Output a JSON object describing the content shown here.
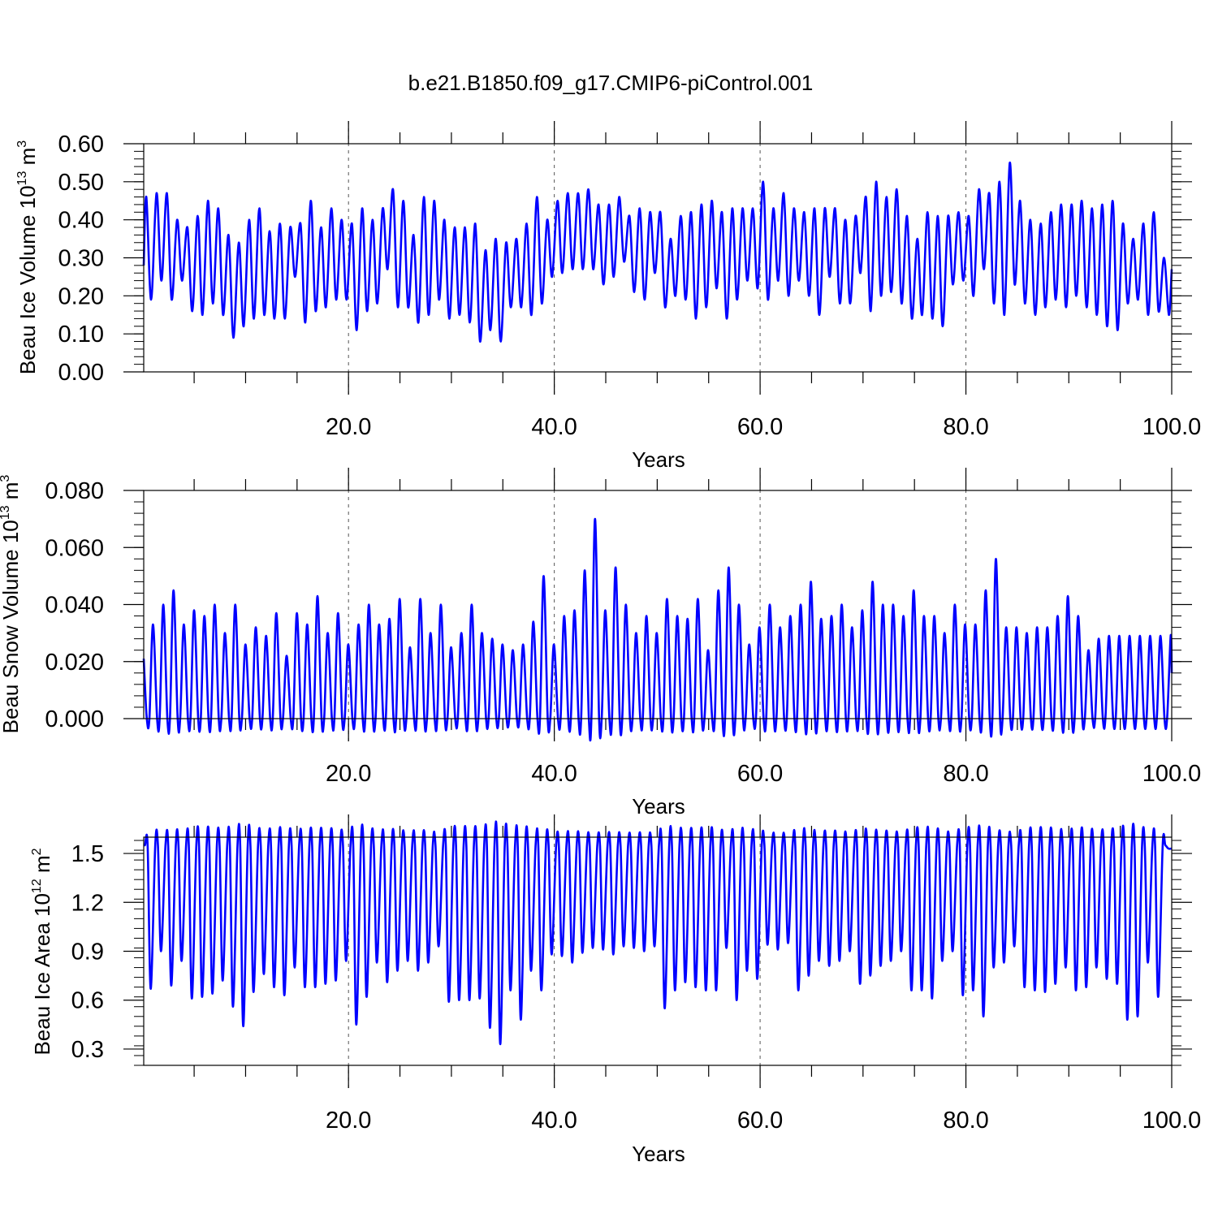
{
  "title": "b.e21.B1850.f09_g17.CMIP6-piControl.001",
  "colors": {
    "line": "#0000ff",
    "axes": "#000000",
    "grid": "#555555",
    "background": "#ffffff"
  },
  "chart_data": [
    {
      "type": "line",
      "ylabel_prefix": "Beau Ice Volume 10",
      "ylabel_exponent": "13",
      "ylabel_unit": " m",
      "ylabel_unit_exponent": "3",
      "xlabel": "Years",
      "xlim": [
        0.1,
        100.0
      ],
      "ylim": [
        0.0,
        0.6
      ],
      "x_ticks": [
        "20.0",
        "40.0",
        "60.0",
        "80.0",
        "100.0"
      ],
      "y_ticks": [
        "0.00",
        "0.10",
        "0.20",
        "0.30",
        "0.40",
        "0.50",
        "0.60"
      ],
      "vertical_gridlines_at": [
        20,
        40,
        60,
        80
      ],
      "series": [
        {
          "peaks": [
            0.46,
            0.47,
            0.47,
            0.4,
            0.38,
            0.41,
            0.45,
            0.43,
            0.36,
            0.34,
            0.4,
            0.43,
            0.37,
            0.39,
            0.38,
            0.39,
            0.45,
            0.38,
            0.43,
            0.4,
            0.39,
            0.43,
            0.4,
            0.43,
            0.48,
            0.45,
            0.36,
            0.46,
            0.45,
            0.4,
            0.38,
            0.38,
            0.39,
            0.32,
            0.35,
            0.34,
            0.35,
            0.39,
            0.46,
            0.4,
            0.45,
            0.47,
            0.47,
            0.48,
            0.44,
            0.44,
            0.46,
            0.41,
            0.43,
            0.42,
            0.42,
            0.35,
            0.41,
            0.42,
            0.44,
            0.45,
            0.42,
            0.43,
            0.43,
            0.43,
            0.5,
            0.43,
            0.47,
            0.43,
            0.42,
            0.43,
            0.43,
            0.43,
            0.4,
            0.41,
            0.46,
            0.5,
            0.46,
            0.48,
            0.41,
            0.35,
            0.42,
            0.41,
            0.41,
            0.42,
            0.41,
            0.48,
            0.47,
            0.5,
            0.55,
            0.45,
            0.4,
            0.39,
            0.42,
            0.44,
            0.44,
            0.45,
            0.43,
            0.44,
            0.45,
            0.39,
            0.35,
            0.39,
            0.42,
            0.3
          ],
          "troughs": [
            0.19,
            0.24,
            0.19,
            0.24,
            0.16,
            0.15,
            0.18,
            0.15,
            0.09,
            0.12,
            0.14,
            0.15,
            0.14,
            0.14,
            0.25,
            0.13,
            0.16,
            0.17,
            0.19,
            0.19,
            0.11,
            0.16,
            0.18,
            0.27,
            0.17,
            0.17,
            0.13,
            0.15,
            0.19,
            0.14,
            0.15,
            0.13,
            0.08,
            0.11,
            0.08,
            0.17,
            0.17,
            0.15,
            0.18,
            0.25,
            0.26,
            0.27,
            0.27,
            0.27,
            0.23,
            0.25,
            0.29,
            0.21,
            0.19,
            0.26,
            0.17,
            0.2,
            0.19,
            0.14,
            0.17,
            0.22,
            0.14,
            0.19,
            0.24,
            0.22,
            0.19,
            0.24,
            0.2,
            0.24,
            0.2,
            0.15,
            0.25,
            0.18,
            0.18,
            0.26,
            0.16,
            0.2,
            0.21,
            0.18,
            0.14,
            0.15,
            0.14,
            0.12,
            0.23,
            0.24,
            0.2,
            0.27,
            0.18,
            0.15,
            0.23,
            0.18,
            0.15,
            0.17,
            0.19,
            0.17,
            0.2,
            0.17,
            0.15,
            0.12,
            0.11,
            0.18,
            0.19,
            0.15,
            0.16,
            0.15
          ],
          "start_value": 0.28,
          "end_value": 0.27
        }
      ]
    },
    {
      "type": "line",
      "ylabel_prefix": "Beau Snow Volume 10",
      "ylabel_exponent": "13",
      "ylabel_unit": " m",
      "ylabel_unit_exponent": "3",
      "xlabel": "Years",
      "xlim": [
        0.1,
        100.0
      ],
      "ylim": [
        0.0,
        0.08
      ],
      "x_ticks": [
        "20.0",
        "40.0",
        "60.0",
        "80.0",
        "100.0"
      ],
      "y_ticks": [
        "0.000",
        "0.020",
        "0.040",
        "0.060",
        "0.080"
      ],
      "vertical_gridlines_at": [
        20,
        40,
        60,
        80
      ],
      "series": [
        {
          "peaks": [
            0.033,
            0.04,
            0.045,
            0.033,
            0.038,
            0.036,
            0.04,
            0.03,
            0.04,
            0.026,
            0.032,
            0.029,
            0.037,
            0.022,
            0.037,
            0.033,
            0.043,
            0.03,
            0.037,
            0.026,
            0.033,
            0.04,
            0.033,
            0.035,
            0.042,
            0.025,
            0.042,
            0.03,
            0.04,
            0.025,
            0.03,
            0.04,
            0.03,
            0.028,
            0.026,
            0.024,
            0.026,
            0.034,
            0.05,
            0.026,
            0.036,
            0.038,
            0.052,
            0.07,
            0.038,
            0.053,
            0.04,
            0.03,
            0.036,
            0.03,
            0.042,
            0.036,
            0.035,
            0.042,
            0.024,
            0.045,
            0.053,
            0.04,
            0.026,
            0.032,
            0.04,
            0.032,
            0.036,
            0.04,
            0.048,
            0.035,
            0.036,
            0.04,
            0.032,
            0.038,
            0.048,
            0.04,
            0.04,
            0.036,
            0.045,
            0.036,
            0.036,
            0.03,
            0.04,
            0.033,
            0.033,
            0.045,
            0.056,
            0.032,
            0.032,
            0.03,
            0.032,
            0.032,
            0.036,
            0.043,
            0.036,
            0.024,
            0.028,
            0.029
          ],
          "troughs": [
            0.0
          ],
          "start_value": 0.021,
          "end_value": 0.016
        }
      ]
    },
    {
      "type": "line",
      "ylabel_prefix": "Beau Ice Area 10",
      "ylabel_exponent": "12",
      "ylabel_unit": " m",
      "ylabel_unit_exponent": "2",
      "xlabel": "Years",
      "xlim": [
        0.1,
        100.0
      ],
      "ylim": [
        0.2,
        1.6
      ],
      "x_ticks": [
        "20.0",
        "40.0",
        "60.0",
        "80.0",
        "100.0"
      ],
      "y_ticks": [
        "0.3",
        "0.6",
        "0.9",
        "1.2",
        "1.5"
      ],
      "vertical_gridlines_at": [
        20,
        40,
        60,
        80
      ],
      "series": [
        {
          "peaks": [
            1.55
          ],
          "troughs": [
            0.67,
            0.9,
            0.69,
            0.84,
            0.61,
            0.62,
            0.64,
            0.72,
            0.56,
            0.44,
            0.65,
            0.76,
            0.68,
            0.63,
            0.8,
            0.68,
            0.68,
            0.7,
            0.72,
            0.84,
            0.45,
            0.62,
            0.83,
            0.71,
            0.78,
            0.84,
            0.78,
            0.83,
            0.93,
            0.59,
            0.6,
            0.6,
            0.61,
            0.43,
            0.33,
            0.66,
            0.48,
            0.78,
            0.66,
            0.88,
            0.87,
            0.83,
            0.89,
            0.92,
            0.91,
            0.88,
            0.93,
            0.92,
            0.9,
            0.93,
            0.55,
            0.66,
            0.71,
            0.68,
            0.66,
            0.66,
            0.92,
            0.6,
            0.78,
            0.73,
            0.94,
            0.91,
            0.95,
            0.66,
            0.75,
            0.84,
            0.81,
            0.84,
            0.9,
            0.7,
            0.75,
            0.81,
            0.84,
            0.9,
            0.66,
            0.66,
            0.61,
            0.84,
            0.9,
            0.63,
            0.66,
            0.5,
            0.8,
            0.83,
            0.93,
            0.68,
            0.66,
            0.65,
            0.7,
            0.8,
            0.66,
            0.68,
            0.8,
            0.73,
            0.7,
            0.48,
            0.5,
            0.83,
            0.62,
            1.53
          ],
          "start_value": 1.55,
          "end_value": 1.53
        }
      ]
    }
  ]
}
